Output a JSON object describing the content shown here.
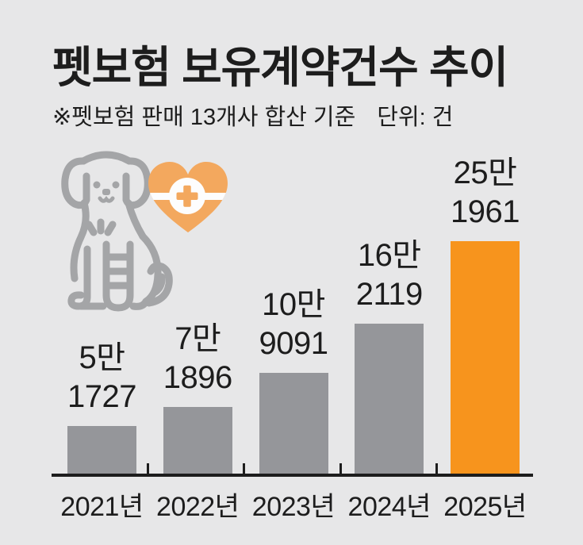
{
  "header": {
    "title": "펫보험 보유계약건수 추이",
    "note": "※펫보험 판매 13개사 합산 기준",
    "unit_label": "단위: 건"
  },
  "icons": {
    "dog": "injured-dog-icon",
    "heart": "heart-medical-cross-icon"
  },
  "colors": {
    "background": "#e7e7e8",
    "bar_gray": "#95969a",
    "bar_highlight_orange": "#f7941d",
    "heart_orange": "#f3a85e",
    "dog_gray": "#a4a5a7",
    "text": "#1d1d1d",
    "axis": "#1d1d1d",
    "icon_white": "#fdfdfd"
  },
  "chart_data": {
    "type": "bar",
    "title": "펫보험 보유계약건수 추이",
    "note": "※펫보험 판매 13개사 합산 기준",
    "unit": "건",
    "unit_label": "단위: 건",
    "categories": [
      "2021년",
      "2022년",
      "2023년",
      "2024년",
      "2025년"
    ],
    "values": [
      51727,
      71896,
      109091,
      162119,
      251961
    ],
    "value_labels": [
      [
        "5만",
        "1727"
      ],
      [
        "7만",
        "1896"
      ],
      [
        "10만",
        "9091"
      ],
      [
        "16만",
        "2119"
      ],
      [
        "25만",
        "1961"
      ]
    ],
    "bar_colors": [
      "#95969a",
      "#95969a",
      "#95969a",
      "#95969a",
      "#f7941d"
    ],
    "highlight_index": 4,
    "ylim": [
      0,
      251961
    ],
    "grid": false,
    "legend": false,
    "xlabel": "",
    "ylabel": ""
  }
}
